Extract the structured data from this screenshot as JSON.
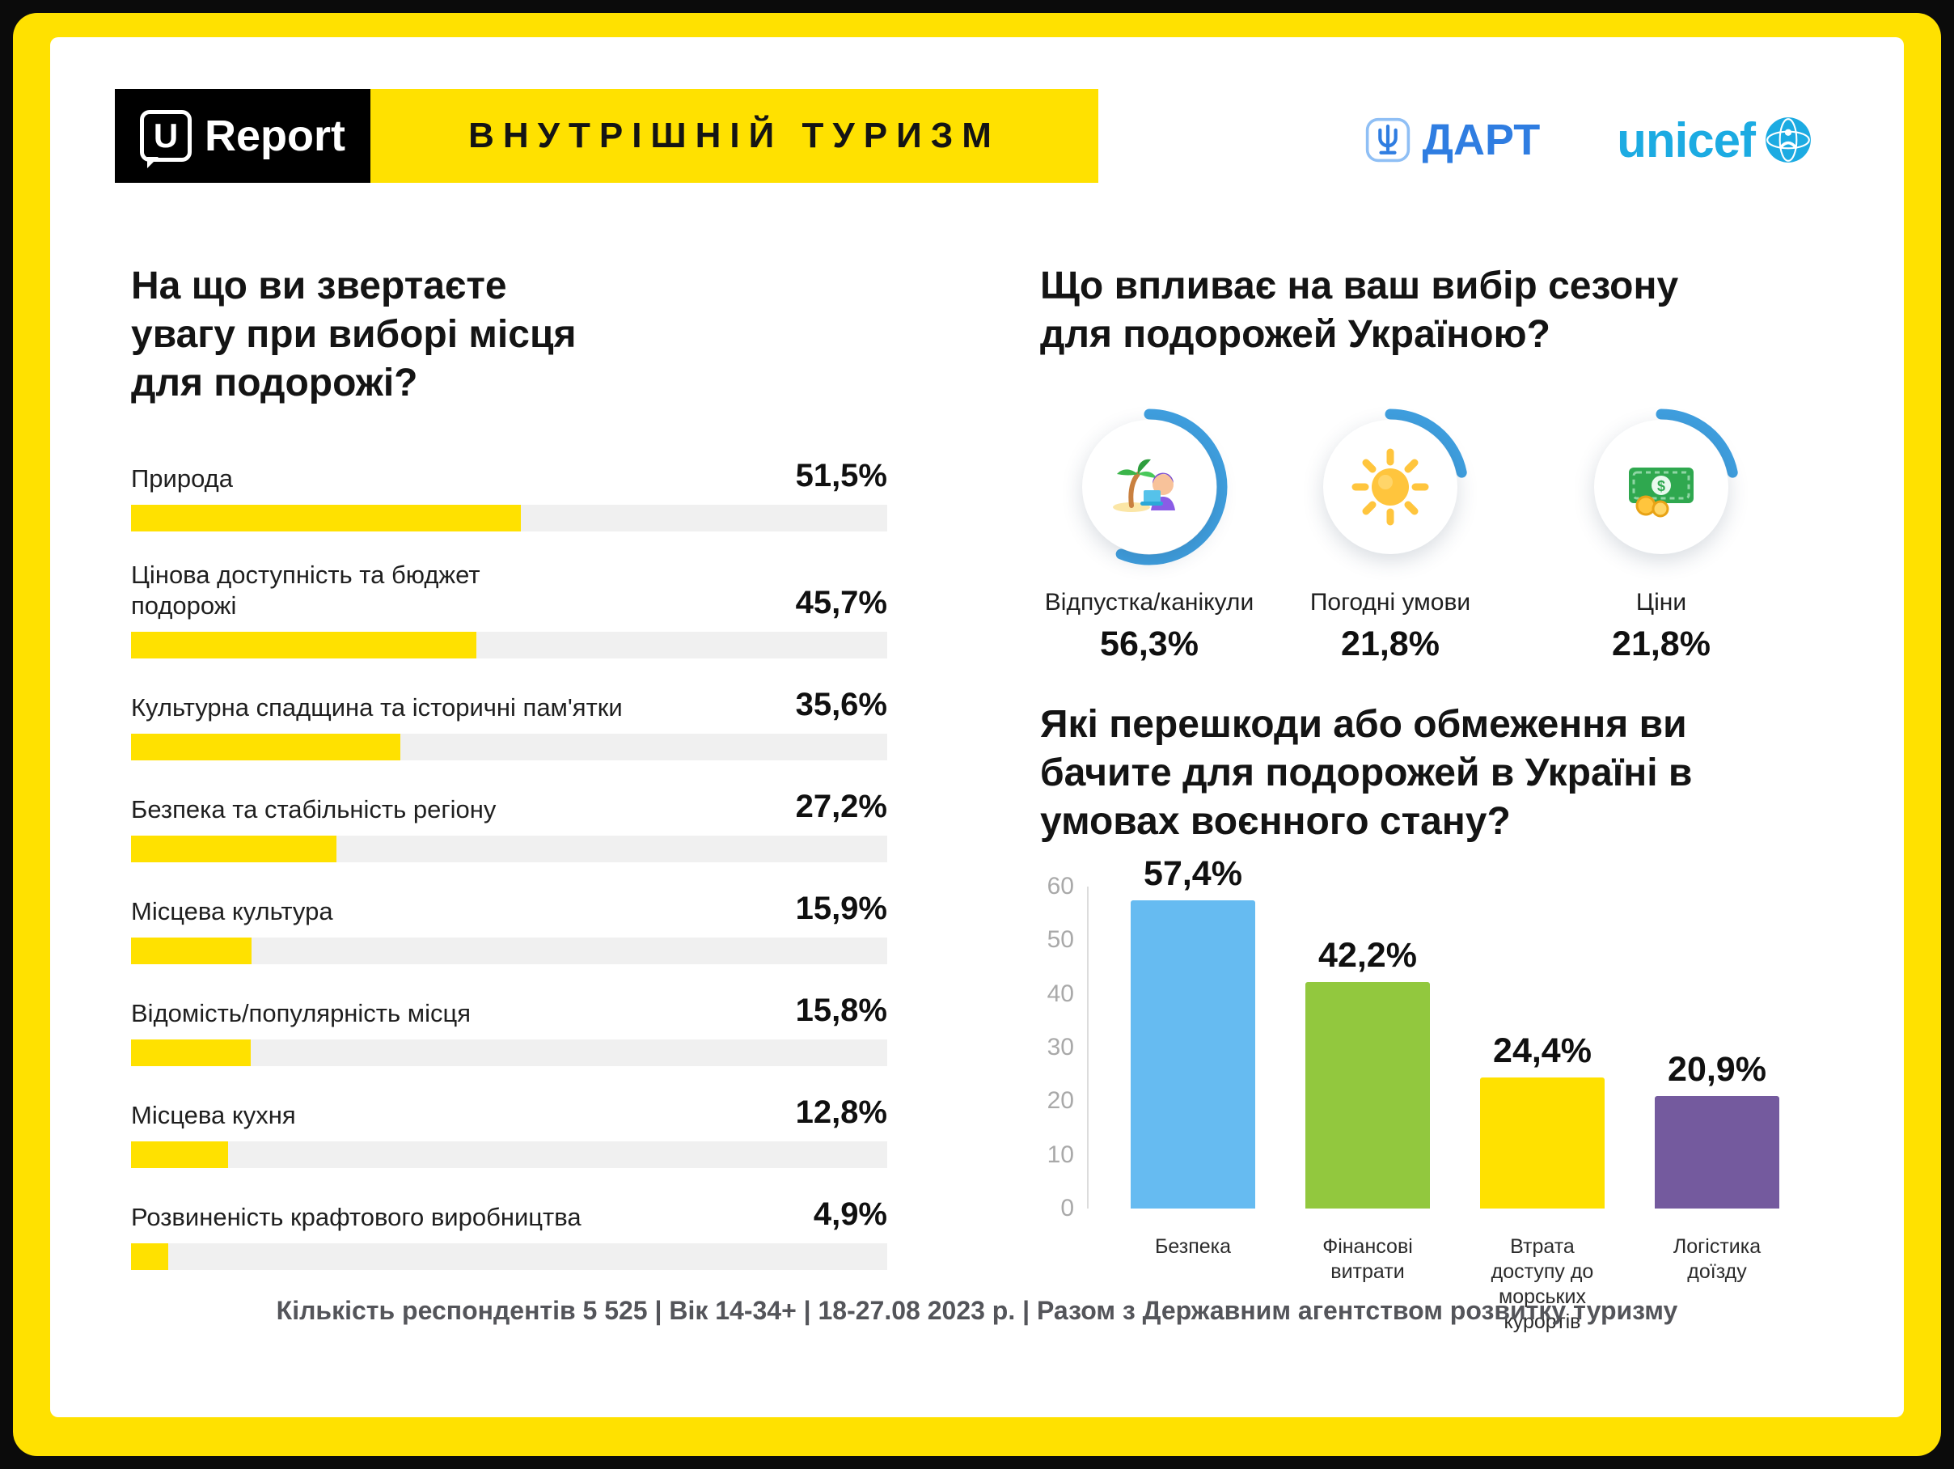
{
  "header": {
    "logo": {
      "u": "U",
      "report": "Report"
    },
    "banner": "ВНУТРІШНІЙ ТУРИЗМ",
    "partners": {
      "dart": "ДАРТ",
      "unicef": "unicef"
    }
  },
  "left_chart": {
    "title": "На що ви звертаєте\nувагу при виборі місця\nдля подорожі?",
    "bar_color": "#FFE100",
    "items": [
      {
        "label": "Природа",
        "percent": "51,5%",
        "value": 51.5
      },
      {
        "label": "Цінова доступність та бюджет\nподорожі",
        "percent": "45,7%",
        "value": 45.7
      },
      {
        "label": "Культурна спадщина та історичні пам'ятки",
        "percent": "35,6%",
        "value": 35.6
      },
      {
        "label": "Безпека та стабільність регіону",
        "percent": "27,2%",
        "value": 27.2
      },
      {
        "label": "Місцева культура",
        "percent": "15,9%",
        "value": 15.9
      },
      {
        "label": "Відомість/популярність місця",
        "percent": "15,8%",
        "value": 15.8
      },
      {
        "label": "Місцева кухня",
        "percent": "12,8%",
        "value": 12.8
      },
      {
        "label": "Розвиненість крафтового виробництва",
        "percent": "4,9%",
        "value": 4.9
      }
    ]
  },
  "season": {
    "title": "Що впливає на ваш вибір сезону\nдля подорожей Україною?",
    "ring_color": "#3F9FDF",
    "items": [
      {
        "label": "Відпустка/канікули",
        "percent": "56,3%",
        "value": 56.3,
        "icon": "vacation-icon"
      },
      {
        "label": "Погодні умови",
        "percent": "21,8%",
        "value": 21.8,
        "icon": "sun-icon"
      },
      {
        "label": "Ціни",
        "percent": "21,8%",
        "value": 21.8,
        "icon": "money-icon"
      }
    ]
  },
  "obstacles": {
    "title": "Які перешкоди або обмеження ви\nбачите для подорожей в Україні в\nумовах воєнного стану?",
    "ymax": 60,
    "yticks": [
      60,
      50,
      40,
      30,
      20,
      10,
      0
    ],
    "bars": [
      {
        "label": "Безпека",
        "percent": "57,4%",
        "value": 57.4,
        "color": "#66BBF1"
      },
      {
        "label": "Фінансові\nвитрати",
        "percent": "42,2%",
        "value": 42.2,
        "color": "#92C83E"
      },
      {
        "label": "Втрата доступу до\nморських курортів",
        "percent": "24,4%",
        "value": 24.4,
        "color": "#FFE100"
      },
      {
        "label": "Логістика\nдоїзду",
        "percent": "20,9%",
        "value": 20.9,
        "color": "#745A9E"
      }
    ]
  },
  "footer": {
    "text": "Кількість респондентів 5 525 |  Вік 14-34+ | 18-27.08 2023 р. | Разом з Державним агентством розвитку туризму"
  },
  "chart_data": [
    {
      "type": "bar",
      "orientation": "horizontal",
      "title": "На що ви звертаєте увагу при виборі місця для подорожі?",
      "categories": [
        "Природа",
        "Цінова доступність та бюджет подорожі",
        "Культурна спадщина та історичні пам'ятки",
        "Безпека та стабільність регіону",
        "Місцева культура",
        "Відомість/популярність місця",
        "Місцева кухня",
        "Розвиненість крафтового виробництва"
      ],
      "values": [
        51.5,
        45.7,
        35.6,
        27.2,
        15.9,
        15.8,
        12.8,
        4.9
      ],
      "unit": "%",
      "bar_color": "#FFE100",
      "xlim": [
        0,
        100
      ],
      "grid": false
    },
    {
      "type": "donut",
      "title": "Що впливає на ваш вибір сезону для подорожей Україною?",
      "categories": [
        "Відпустка/канікули",
        "Погодні умови",
        "Ціни"
      ],
      "values": [
        56.3,
        21.8,
        21.8
      ],
      "unit": "%",
      "ring_color": "#3F9FDF"
    },
    {
      "type": "bar",
      "orientation": "vertical",
      "title": "Які перешкоди або обмеження ви бачите для подорожей в Україні в умовах воєнного стану?",
      "categories": [
        "Безпека",
        "Фінансові витрати",
        "Втрата доступу до морських курортів",
        "Логістика доїзду"
      ],
      "values": [
        57.4,
        42.2,
        24.4,
        20.9
      ],
      "unit": "%",
      "ylim": [
        0,
        60
      ],
      "yticks": [
        0,
        10,
        20,
        30,
        40,
        50,
        60
      ],
      "colors": [
        "#66BBF1",
        "#92C83E",
        "#FFE100",
        "#745A9E"
      ],
      "grid": false
    }
  ]
}
